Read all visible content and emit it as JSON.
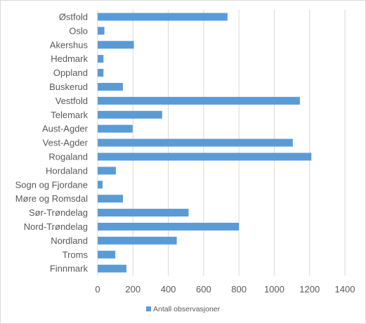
{
  "chart_data": {
    "type": "bar",
    "orientation": "horizontal",
    "categories": [
      "Østfold",
      "Oslo",
      "Akershus",
      "Hedmark",
      "Oppland",
      "Buskerud",
      "Vestfold",
      "Telemark",
      "Aust-Agder",
      "Vest-Agder",
      "Rogaland",
      "Hordaland",
      "Sogn og Fjordane",
      "Møre og Romsdal",
      "Sør-Trøndelag",
      "Nord-Trøndelag",
      "Nordland",
      "Troms",
      "Finnmark"
    ],
    "series": [
      {
        "name": "Antall observasjoner",
        "values": [
          735,
          38,
          205,
          33,
          33,
          143,
          1145,
          365,
          198,
          1105,
          1210,
          103,
          28,
          143,
          515,
          800,
          448,
          100,
          163
        ]
      }
    ],
    "xlim": [
      0,
      1400
    ],
    "xticks": [
      0,
      200,
      400,
      600,
      800,
      1000,
      1200,
      1400
    ],
    "grid": "vertical",
    "legend_position": "bottom",
    "bar_color": "#5b9bd5"
  }
}
